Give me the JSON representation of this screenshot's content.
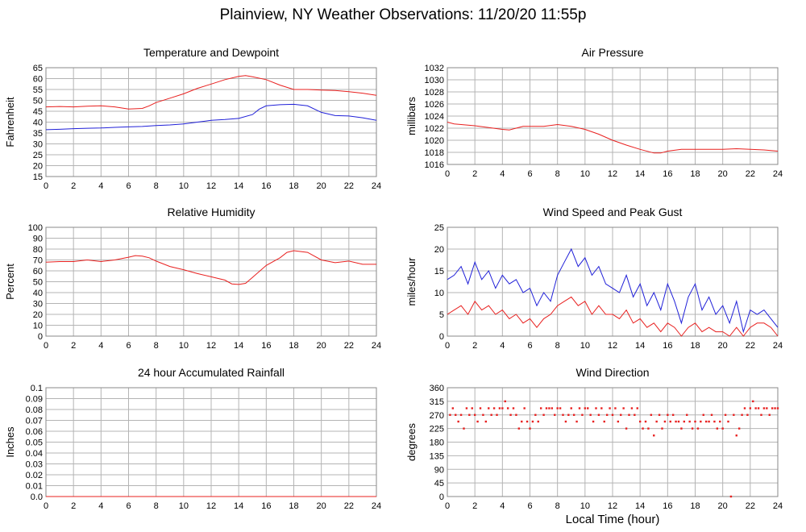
{
  "title": "Plainview, NY Weather Observations: 11/20/20 11:55p",
  "x_label": "Local Time (hour)",
  "colors": {
    "red": "#e8201f",
    "blue": "#2020d8",
    "grid": "#b4b4b4"
  },
  "chart_data": [
    {
      "type": "line",
      "title": "Temperature and Dewpoint",
      "xlabel": "",
      "ylabel": "Fahrenheit",
      "xlim": [
        0,
        24
      ],
      "ylim": [
        15,
        65
      ],
      "xticks": [
        0,
        2,
        4,
        6,
        8,
        10,
        12,
        14,
        16,
        18,
        20,
        22,
        24
      ],
      "yticks": [
        15,
        20,
        25,
        30,
        35,
        40,
        45,
        50,
        55,
        60,
        65
      ],
      "grid": true,
      "series": [
        {
          "color": "red",
          "x": [
            0,
            1,
            2,
            3,
            4,
            5,
            6,
            7,
            7.5,
            8,
            9,
            10,
            11,
            12,
            13,
            14,
            14.5,
            15,
            16,
            17,
            18,
            19,
            20,
            21,
            22,
            23,
            24
          ],
          "y": [
            47,
            47.2,
            47,
            47.3,
            47.5,
            47,
            46,
            46.3,
            47.5,
            49,
            51,
            53,
            55.5,
            57.5,
            59.5,
            61,
            61.4,
            60.8,
            59.5,
            57,
            55,
            55,
            54.7,
            54.5,
            54,
            53.3,
            52.3
          ]
        },
        {
          "color": "blue",
          "x": [
            0,
            1,
            2,
            3,
            4,
            5,
            6,
            7,
            8,
            9,
            10,
            11,
            12,
            13,
            14,
            15,
            15.5,
            16,
            17,
            18,
            19,
            20,
            21,
            22,
            23,
            24
          ],
          "y": [
            36.5,
            36.7,
            37,
            37.2,
            37.3,
            37.6,
            37.8,
            38,
            38.4,
            38.7,
            39.2,
            40,
            40.8,
            41.2,
            41.7,
            43.5,
            46,
            47.5,
            48,
            48.2,
            47.5,
            44.5,
            43,
            42.8,
            42,
            40.8
          ]
        }
      ]
    },
    {
      "type": "line",
      "title": "Air Pressure",
      "xlabel": "",
      "ylabel": "millibars",
      "xlim": [
        0,
        24
      ],
      "ylim": [
        1016,
        1032
      ],
      "xticks": [
        0,
        2,
        4,
        6,
        8,
        10,
        12,
        14,
        16,
        18,
        20,
        22,
        24
      ],
      "yticks": [
        1016,
        1018,
        1020,
        1022,
        1024,
        1026,
        1028,
        1030,
        1032
      ],
      "grid": true,
      "series": [
        {
          "color": "red",
          "x": [
            0,
            0.5,
            1,
            2,
            3,
            4,
            4.5,
            5,
            5.5,
            6,
            7,
            8,
            9,
            10,
            11,
            12,
            13,
            14,
            15,
            15.5,
            16,
            17,
            18,
            19,
            20,
            21,
            22,
            23,
            24
          ],
          "y": [
            1023,
            1022.7,
            1022.6,
            1022.4,
            1022.1,
            1021.8,
            1021.7,
            1022,
            1022.3,
            1022.3,
            1022.3,
            1022.6,
            1022.3,
            1021.8,
            1021,
            1020,
            1019.2,
            1018.5,
            1017.9,
            1017.9,
            1018.2,
            1018.5,
            1018.5,
            1018.5,
            1018.5,
            1018.6,
            1018.5,
            1018.4,
            1018.2
          ]
        }
      ]
    },
    {
      "type": "line",
      "title": "Relative Humidity",
      "xlabel": "",
      "ylabel": "Percent",
      "xlim": [
        0,
        24
      ],
      "ylim": [
        0,
        100
      ],
      "xticks": [
        0,
        2,
        4,
        6,
        8,
        10,
        12,
        14,
        16,
        18,
        20,
        22,
        24
      ],
      "yticks": [
        0,
        10,
        20,
        30,
        40,
        50,
        60,
        70,
        80,
        90,
        100
      ],
      "grid": true,
      "series": [
        {
          "color": "red",
          "x": [
            0,
            1,
            2,
            3,
            4,
            5,
            6,
            6.5,
            7,
            7.5,
            8,
            9,
            10,
            11,
            12,
            13,
            13.5,
            14,
            14.5,
            15,
            16,
            17,
            17.5,
            18,
            19,
            20,
            21,
            22,
            23,
            24
          ],
          "y": [
            68,
            68.5,
            68.5,
            70,
            68.5,
            70,
            72.5,
            74,
            73.5,
            72,
            69,
            64,
            61,
            57.5,
            54.5,
            51.5,
            48,
            47.5,
            48.5,
            54,
            65,
            72,
            77,
            78.5,
            77,
            70,
            67.5,
            69,
            66,
            66
          ]
        }
      ]
    },
    {
      "type": "line",
      "title": "Wind Speed and Peak Gust",
      "xlabel": "",
      "ylabel": "miles/hour",
      "xlim": [
        0,
        24
      ],
      "ylim": [
        0,
        25
      ],
      "xticks": [
        0,
        2,
        4,
        6,
        8,
        10,
        12,
        14,
        16,
        18,
        20,
        22,
        24
      ],
      "yticks": [
        0,
        5,
        10,
        15,
        20,
        25
      ],
      "grid": true,
      "series": [
        {
          "color": "blue",
          "x": [
            0,
            0.5,
            1,
            1.5,
            2,
            2.5,
            3,
            3.5,
            4,
            4.5,
            5,
            5.5,
            6,
            6.5,
            7,
            7.5,
            8,
            8.5,
            9,
            9.5,
            10,
            10.5,
            11,
            11.5,
            12,
            12.5,
            13,
            13.5,
            14,
            14.5,
            15,
            15.5,
            16,
            16.5,
            17,
            17.5,
            18,
            18.5,
            19,
            19.5,
            20,
            20.5,
            21,
            21.5,
            22,
            22.5,
            23,
            23.5,
            24
          ],
          "y": [
            13,
            14,
            16,
            12,
            17,
            13,
            15,
            11,
            14,
            12,
            13,
            10,
            11,
            7,
            10,
            8,
            14,
            17,
            20,
            16,
            18,
            14,
            16,
            12,
            11,
            10,
            14,
            9,
            12,
            7,
            10,
            6,
            12,
            8,
            3,
            9,
            12,
            6,
            9,
            5,
            7,
            3,
            8,
            1,
            6,
            5,
            6,
            4,
            2
          ]
        },
        {
          "color": "red",
          "x": [
            0,
            0.5,
            1,
            1.5,
            2,
            2.5,
            3,
            3.5,
            4,
            4.5,
            5,
            5.5,
            6,
            6.5,
            7,
            7.5,
            8,
            8.5,
            9,
            9.5,
            10,
            10.5,
            11,
            11.5,
            12,
            12.5,
            13,
            13.5,
            14,
            14.5,
            15,
            15.5,
            16,
            16.5,
            17,
            17.5,
            18,
            18.5,
            19,
            19.5,
            20,
            20.5,
            21,
            21.5,
            22,
            22.5,
            23,
            23.5,
            24
          ],
          "y": [
            5,
            6,
            7,
            5,
            8,
            6,
            7,
            5,
            6,
            4,
            5,
            3,
            4,
            2,
            4,
            5,
            7,
            8,
            9,
            7,
            8,
            5,
            7,
            5,
            5,
            4,
            6,
            3,
            4,
            2,
            3,
            1,
            3,
            2,
            0,
            2,
            3,
            1,
            2,
            1,
            1,
            0,
            2,
            0,
            2,
            3,
            3,
            2,
            0
          ]
        }
      ]
    },
    {
      "type": "line",
      "title": "24 hour Accumulated Rainfall",
      "xlabel": "",
      "ylabel": "Inches",
      "xlim": [
        0,
        24
      ],
      "ylim": [
        0,
        0.1
      ],
      "xticks": [
        0,
        2,
        4,
        6,
        8,
        10,
        12,
        14,
        16,
        18,
        20,
        22,
        24
      ],
      "yticks": [
        "0.0",
        "0.01",
        "0.02",
        "0.03",
        "0.04",
        "0.05",
        "0.06",
        "0.07",
        "0.08",
        "0.09",
        "0.1"
      ],
      "grid": true,
      "series": [
        {
          "color": "red",
          "x": [
            0,
            24
          ],
          "y": [
            0,
            0
          ]
        }
      ]
    },
    {
      "type": "scatter",
      "title": "Wind Direction",
      "xlabel": "Local Time (hour)",
      "ylabel": "degrees",
      "xlim": [
        0,
        24
      ],
      "ylim": [
        0,
        360
      ],
      "xticks": [
        0,
        2,
        4,
        6,
        8,
        10,
        12,
        14,
        16,
        18,
        20,
        22,
        24
      ],
      "yticks": [
        0,
        45,
        90,
        135,
        180,
        225,
        270,
        315,
        360
      ],
      "grid": true,
      "series": [
        {
          "color": "red",
          "x": [
            0.2,
            0.4,
            0.6,
            0.8,
            1.0,
            1.2,
            1.4,
            1.6,
            1.8,
            2.0,
            2.2,
            2.4,
            2.6,
            2.8,
            3.0,
            3.2,
            3.4,
            3.6,
            3.8,
            4.0,
            4.2,
            4.4,
            4.6,
            4.8,
            5.0,
            5.2,
            5.4,
            5.6,
            5.8,
            6.0,
            6.2,
            6.4,
            6.6,
            6.8,
            7.0,
            7.2,
            7.4,
            7.6,
            7.8,
            8.0,
            8.2,
            8.4,
            8.6,
            8.8,
            9.0,
            9.2,
            9.4,
            9.6,
            9.8,
            10.0,
            10.2,
            10.4,
            10.6,
            10.8,
            11.0,
            11.2,
            11.4,
            11.6,
            11.8,
            12.0,
            12.2,
            12.4,
            12.6,
            12.8,
            13.0,
            13.2,
            13.4,
            13.6,
            13.8,
            14.0,
            14.2,
            14.4,
            14.6,
            14.8,
            15.0,
            15.2,
            15.4,
            15.6,
            15.8,
            16.0,
            16.2,
            16.4,
            16.6,
            16.8,
            17.0,
            17.2,
            17.4,
            17.6,
            17.8,
            18.0,
            18.2,
            18.4,
            18.6,
            18.8,
            19.0,
            19.2,
            19.4,
            19.6,
            19.8,
            20.0,
            20.2,
            20.4,
            20.6,
            20.8,
            21.0,
            21.2,
            21.4,
            21.6,
            21.8,
            22.0,
            22.2,
            22.4,
            22.6,
            22.8,
            23.0,
            23.2,
            23.4,
            23.6,
            23.8,
            24.0
          ],
          "y": [
            270,
            292,
            270,
            248,
            270,
            225,
            292,
            270,
            292,
            270,
            248,
            292,
            270,
            248,
            292,
            270,
            292,
            270,
            292,
            292,
            315,
            292,
            270,
            292,
            270,
            225,
            248,
            292,
            248,
            225,
            248,
            270,
            248,
            292,
            270,
            292,
            292,
            292,
            270,
            292,
            292,
            270,
            248,
            270,
            292,
            270,
            248,
            292,
            270,
            292,
            292,
            270,
            248,
            292,
            270,
            292,
            248,
            270,
            292,
            270,
            292,
            248,
            270,
            292,
            225,
            270,
            292,
            270,
            292,
            248,
            225,
            248,
            225,
            270,
            202,
            248,
            270,
            225,
            248,
            270,
            248,
            270,
            248,
            248,
            225,
            248,
            270,
            248,
            225,
            248,
            225,
            248,
            270,
            248,
            248,
            270,
            248,
            225,
            248,
            225,
            270,
            248,
            0,
            270,
            202,
            225,
            270,
            292,
            270,
            292,
            315,
            292,
            292,
            270,
            292,
            292,
            270,
            292,
            292,
            292
          ]
        }
      ]
    }
  ]
}
